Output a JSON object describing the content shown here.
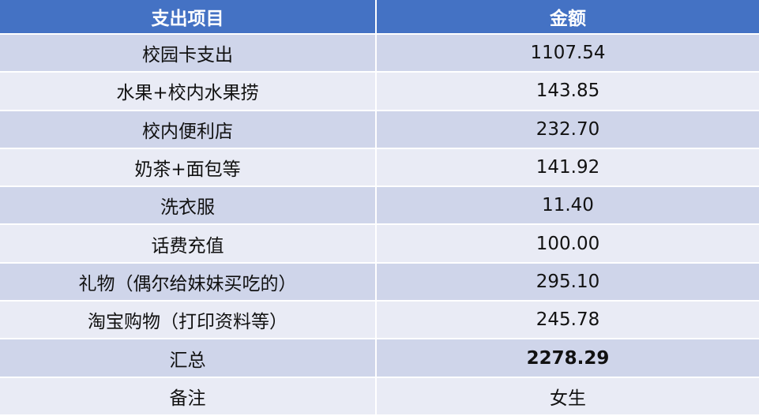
{
  "header": {
    "item": "支出项目",
    "amount": "金额"
  },
  "rows": [
    {
      "item": "校园卡支出",
      "amount": "1107.54"
    },
    {
      "item": "水果+校内水果捞",
      "amount": "143.85"
    },
    {
      "item": "校内便利店",
      "amount": "232.70"
    },
    {
      "item": "奶茶+面包等",
      "amount": "141.92"
    },
    {
      "item": "洗衣服",
      "amount": "11.40"
    },
    {
      "item": "话费充值",
      "amount": "100.00"
    },
    {
      "item": "礼物（偶尔给妹妹买吃的）",
      "amount": "295.10"
    },
    {
      "item": "淘宝购物（打印资料等）",
      "amount": "245.78"
    },
    {
      "item": "汇总",
      "amount": "2278.29"
    },
    {
      "item": "备注",
      "amount": "女生"
    }
  ],
  "colors": {
    "header_bg": "#4472c4",
    "row_dark": "#cfd5ea",
    "row_light": "#e9ebf5"
  }
}
